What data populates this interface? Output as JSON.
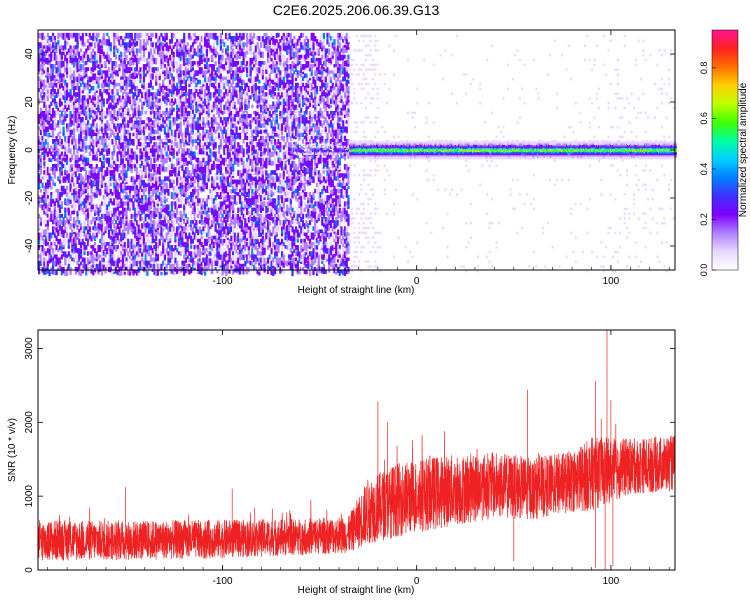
{
  "title": "C2E6.2025.206.06.39.G13",
  "colors": {
    "snr_line": "#ee2222",
    "frame": "#000000",
    "colorscale": [
      "#ffffff",
      "#e8d8ff",
      "#b080ff",
      "#7f00ff",
      "#4030ff",
      "#0080ff",
      "#00d0ff",
      "#00ffa0",
      "#40ff00",
      "#c0ff00",
      "#ffd000",
      "#ff7000",
      "#ff2020",
      "#ff1493"
    ]
  },
  "chart_data": [
    {
      "type": "heatmap",
      "xlabel": "Height of straight line (km)",
      "ylabel": "Frequency (Hz)",
      "xlim": [
        -195,
        133
      ],
      "ylim": [
        -50,
        50
      ],
      "xticks": [
        -100,
        0,
        100
      ],
      "xtick_labels": [
        "-100",
        "0",
        "100"
      ],
      "yticks": [
        -40,
        -20,
        0,
        20,
        40
      ],
      "ytick_labels": [
        "-40",
        "-20",
        "0",
        "20",
        "40"
      ],
      "colorbar": {
        "label": "Normalized spectral amplitude",
        "range": [
          0,
          0.95
        ],
        "ticks": [
          0.0,
          0.2,
          0.4,
          0.6,
          0.8
        ],
        "tick_labels": [
          "0.0",
          "0.2",
          "0.4",
          "0.6",
          "0.8"
        ]
      },
      "features": {
        "noise_region_x": [
          -195,
          -35
        ],
        "onset_x": -35,
        "carrier_frequency_hz": 0,
        "carrier_peak_amplitude": 0.9,
        "sparse_residue_x": [
          -35,
          95
        ]
      }
    },
    {
      "type": "line",
      "xlabel": "Height of straight line (km)",
      "ylabel": "SNR (10 * v/v)",
      "xlim": [
        -195,
        133
      ],
      "ylim": [
        0,
        3250
      ],
      "xticks": [
        -100,
        0,
        100
      ],
      "xtick_labels": [
        "-100",
        "0",
        "100"
      ],
      "yticks": [
        0,
        1000,
        2000,
        3000
      ],
      "ytick_labels": [
        "0",
        "1000",
        "2000",
        "3000"
      ],
      "envelope": {
        "x": [
          -195,
          -150,
          -100,
          -60,
          -35,
          -25,
          -10,
          10,
          40,
          60,
          80,
          90,
          110,
          133
        ],
        "mean": [
          400,
          400,
          420,
          450,
          480,
          800,
          950,
          1050,
          1150,
          1100,
          1200,
          1300,
          1400,
          1450
        ],
        "spread": [
          280,
          270,
          260,
          250,
          250,
          450,
          500,
          500,
          450,
          420,
          420,
          500,
          380,
          380
        ]
      },
      "spikes": [
        {
          "x": -20,
          "y": 2280
        },
        {
          "x": -15,
          "y": 2000
        },
        {
          "x": 57,
          "y": 2440
        },
        {
          "x": 92,
          "y": 2560
        },
        {
          "x": 95,
          "y": 2050
        },
        {
          "x": 98,
          "y": 3250
        },
        {
          "x": 100,
          "y": 2300
        },
        {
          "x": -150,
          "y": 1120
        },
        {
          "x": -95,
          "y": 1100
        }
      ],
      "dips": [
        {
          "x": 92,
          "y": 30
        },
        {
          "x": 97,
          "y": 10
        },
        {
          "x": 101,
          "y": 50
        },
        {
          "x": 50,
          "y": 120
        }
      ]
    }
  ]
}
